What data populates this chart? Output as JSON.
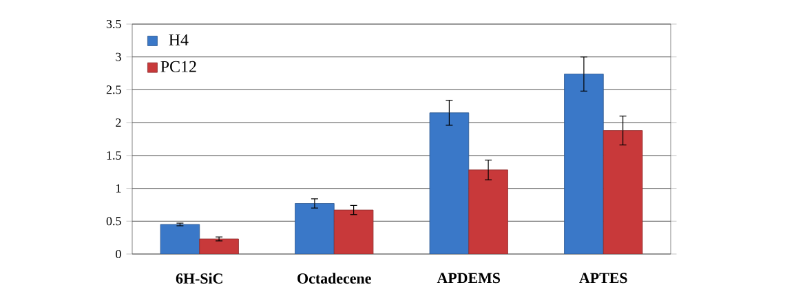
{
  "chart_data": {
    "type": "bar",
    "categories": [
      "6H-SiC",
      "Octadecene",
      "APDEMS",
      "APTES"
    ],
    "series": [
      {
        "name": "H4",
        "color": "#3a78c8",
        "values": [
          0.45,
          0.77,
          2.15,
          2.74
        ],
        "errors": [
          0.02,
          0.07,
          0.19,
          0.26
        ]
      },
      {
        "name": "PC12",
        "color": "#c8393a",
        "values": [
          0.23,
          0.67,
          1.28,
          1.88
        ],
        "errors": [
          0.03,
          0.07,
          0.15,
          0.22
        ]
      }
    ],
    "ylim": [
      0,
      3.5
    ],
    "yticks": [
      0,
      0.5,
      1,
      1.5,
      2,
      2.5,
      3,
      3.5
    ],
    "grid": "y",
    "legend": "top left"
  }
}
